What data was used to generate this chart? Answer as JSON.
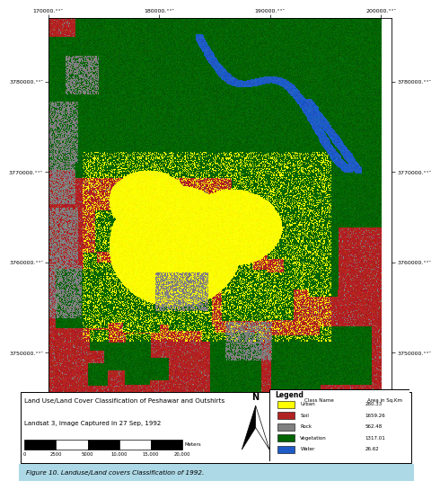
{
  "title": "Figure 10. Landuse/Land covers Classification of 1992.",
  "map_title": "Land Use/Land Cover Classification of Peshawar and Outshirts",
  "map_subtitle": "Landsat 3, Image Captured in 27 Sep, 1992",
  "legend_title": "Legend",
  "legend_col1": "Class Name",
  "legend_col2": "Area in Sq.Km",
  "legend_items": [
    {
      "name": "Urban",
      "color": "#FFFF00",
      "area": "280.33"
    },
    {
      "name": "Soil",
      "color": "#B22222",
      "area": "1659.26"
    },
    {
      "name": "Rock",
      "color": "#808080",
      "area": "562.48"
    },
    {
      "name": "Vegetation",
      "color": "#006400",
      "area": "1317.01"
    },
    {
      "name": "Water",
      "color": "#1E5BC6",
      "area": "26.62"
    }
  ],
  "scalebar_values": [
    0,
    2500,
    5000,
    10000,
    15000,
    20000
  ],
  "scalebar_label": "Meters",
  "x_ticks": [
    170000,
    180000,
    190000,
    200000
  ],
  "y_ticks": [
    3750000,
    3760000,
    3770000,
    3780000
  ],
  "fig_background": "#FFFFFF",
  "figure_caption_bg": "#ADD8E6",
  "figure_caption_text": "Figure 10. Landuse/Land covers Classification of 1992."
}
